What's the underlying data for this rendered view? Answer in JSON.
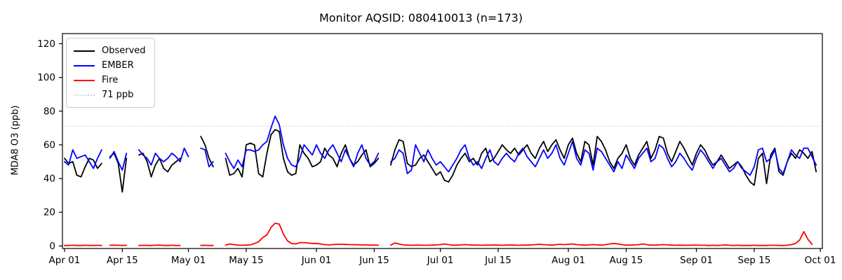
{
  "chart_data": {
    "type": "line",
    "title": "Monitor AQSID: 080410013 (n=173)",
    "xlabel": "",
    "ylabel": "MDA8 O3 (ppb)",
    "ylim": [
      0,
      120
    ],
    "grid": false,
    "legend_position": "upper-left",
    "y_ticks": [
      0,
      20,
      40,
      60,
      80,
      100,
      120
    ],
    "x_ticks": [
      {
        "label": "Apr 01",
        "day": 0
      },
      {
        "label": "Apr 15",
        "day": 14
      },
      {
        "label": "May 01",
        "day": 30
      },
      {
        "label": "May 15",
        "day": 44
      },
      {
        "label": "Jun 01",
        "day": 61
      },
      {
        "label": "Jun 15",
        "day": 75
      },
      {
        "label": "Jul 01",
        "day": 91
      },
      {
        "label": "Jul 15",
        "day": 105
      },
      {
        "label": "Aug 01",
        "day": 122
      },
      {
        "label": "Aug 15",
        "day": 136
      },
      {
        "label": "Sep 01",
        "day": 153
      },
      {
        "label": "Sep 15",
        "day": 167
      },
      {
        "label": "Oct 01",
        "day": 183
      }
    ],
    "threshold": {
      "label": "71 ppb",
      "value": 71,
      "color": "#d3d3d3",
      "style": "dotted"
    },
    "legend": [
      {
        "label": "Observed",
        "color": "#000000",
        "style": "solid"
      },
      {
        "label": "EMBER",
        "color": "#0000ff",
        "style": "solid"
      },
      {
        "label": "Fire",
        "color": "#ff0000",
        "style": "solid"
      },
      {
        "label": "71 ppb",
        "color": "#d3d3d3",
        "style": "dotted"
      }
    ],
    "x_start_label": "Apr 01",
    "x_end_label": "Oct 01",
    "n_points_label": 173,
    "series": [
      {
        "name": "Observed",
        "color": "#000000",
        "values": [
          52,
          49,
          50,
          42,
          41,
          47,
          52,
          51,
          46,
          49,
          null,
          53,
          55,
          49,
          32,
          52,
          null,
          null,
          54,
          55,
          50,
          41,
          48,
          52,
          46,
          44,
          48,
          50,
          52,
          null,
          null,
          null,
          null,
          65,
          60,
          52,
          47,
          null,
          null,
          52,
          42,
          43,
          46,
          41,
          60,
          61,
          60,
          43,
          41,
          55,
          66,
          69,
          68,
          52,
          44,
          42,
          43,
          60,
          55,
          52,
          47,
          48,
          50,
          58,
          54,
          52,
          47,
          55,
          60,
          52,
          48,
          50,
          54,
          57,
          47,
          49,
          52,
          null,
          null,
          48,
          57,
          63,
          62,
          49,
          47,
          48,
          52,
          54,
          50,
          46,
          42,
          44,
          39,
          38,
          42,
          48,
          52,
          55,
          50,
          52,
          48,
          55,
          58,
          50,
          52,
          56,
          60,
          57,
          55,
          58,
          54,
          57,
          60,
          55,
          52,
          58,
          62,
          56,
          60,
          63,
          57,
          52,
          60,
          64,
          55,
          50,
          62,
          60,
          48,
          65,
          62,
          57,
          50,
          46,
          52,
          55,
          60,
          52,
          48,
          54,
          58,
          62,
          52,
          57,
          65,
          64,
          55,
          50,
          56,
          62,
          58,
          53,
          48,
          55,
          60,
          57,
          52,
          48,
          50,
          54,
          50,
          46,
          48,
          50,
          47,
          42,
          38,
          36,
          52,
          55,
          37,
          54,
          58,
          44,
          42,
          50,
          55,
          52,
          57,
          55,
          52,
          56,
          44
        ]
      },
      {
        "name": "EMBER",
        "color": "#0000ff",
        "values": [
          50,
          48,
          57,
          52,
          53,
          54,
          50,
          46,
          52,
          57,
          null,
          52,
          56,
          50,
          45,
          55,
          null,
          null,
          57,
          54,
          52,
          48,
          55,
          52,
          50,
          52,
          55,
          53,
          50,
          58,
          53,
          null,
          null,
          58,
          57,
          47,
          50,
          null,
          null,
          55,
          50,
          46,
          51,
          47,
          57,
          57,
          56,
          57,
          60,
          62,
          70,
          77,
          72,
          60,
          52,
          48,
          47,
          52,
          60,
          57,
          54,
          60,
          55,
          52,
          57,
          60,
          55,
          50,
          57,
          52,
          47,
          55,
          60,
          52,
          48,
          50,
          55,
          null,
          null,
          50,
          52,
          57,
          55,
          43,
          45,
          60,
          55,
          50,
          57,
          52,
          48,
          50,
          47,
          44,
          48,
          52,
          57,
          60,
          52,
          48,
          50,
          46,
          52,
          57,
          50,
          48,
          52,
          55,
          52,
          50,
          55,
          58,
          53,
          50,
          47,
          52,
          57,
          52,
          55,
          60,
          52,
          48,
          55,
          62,
          52,
          48,
          57,
          55,
          45,
          58,
          56,
          52,
          48,
          44,
          50,
          46,
          54,
          50,
          46,
          52,
          55,
          58,
          50,
          52,
          60,
          58,
          52,
          47,
          50,
          55,
          52,
          48,
          45,
          52,
          57,
          54,
          50,
          46,
          50,
          52,
          48,
          44,
          46,
          50,
          46,
          44,
          42,
          47,
          57,
          58,
          50,
          52,
          57,
          46,
          43,
          50,
          57,
          54,
          52,
          58,
          58,
          53,
          48
        ]
      },
      {
        "name": "Fire",
        "color": "#ff0000",
        "values": [
          0.3,
          0.3,
          0.4,
          0.3,
          0.3,
          0.4,
          0.3,
          0.3,
          0.4,
          0.3,
          null,
          0.4,
          0.5,
          0.4,
          0.3,
          0.4,
          null,
          null,
          0.3,
          0.4,
          0.3,
          0.3,
          0.4,
          0.5,
          0.3,
          0.3,
          0.4,
          0.3,
          0.3,
          null,
          null,
          null,
          null,
          0.3,
          0.4,
          0.3,
          0.3,
          null,
          null,
          0.5,
          1.2,
          0.8,
          0.5,
          0.4,
          0.5,
          0.6,
          1.5,
          2.5,
          5,
          6.5,
          11,
          13.5,
          13,
          7,
          3,
          1.5,
          1.2,
          2,
          2,
          1.8,
          1.5,
          1.5,
          1.2,
          0.8,
          0.6,
          0.8,
          1,
          1,
          0.9,
          0.8,
          0.8,
          0.7,
          0.6,
          0.6,
          0.5,
          0.5,
          0.4,
          null,
          null,
          0.5,
          1.8,
          1.2,
          0.6,
          0.5,
          0.4,
          0.5,
          0.5,
          0.4,
          0.4,
          0.5,
          0.6,
          0.8,
          1.2,
          0.8,
          0.5,
          0.5,
          0.6,
          0.8,
          0.6,
          0.5,
          0.5,
          0.4,
          0.5,
          0.5,
          0.6,
          0.5,
          0.4,
          0.5,
          0.6,
          0.5,
          0.4,
          0.5,
          0.5,
          0.6,
          0.8,
          1,
          0.8,
          0.6,
          0.5,
          0.8,
          1,
          0.8,
          1,
          1.2,
          0.8,
          0.6,
          0.5,
          0.6,
          0.8,
          0.6,
          0.5,
          0.8,
          1.2,
          1.5,
          1.2,
          0.8,
          0.5,
          0.5,
          0.6,
          0.8,
          1.2,
          0.8,
          0.5,
          0.5,
          0.6,
          0.8,
          0.6,
          0.5,
          0.4,
          0.5,
          0.4,
          0.4,
          0.5,
          0.5,
          0.4,
          0.4,
          0.3,
          0.4,
          0.3,
          0.4,
          0.6,
          0.4,
          0.3,
          0.4,
          0.3,
          0.3,
          0.3,
          0.4,
          0.3,
          0.3,
          0.3,
          0.4,
          0.4,
          0.3,
          0.3,
          0.4,
          0.8,
          1.5,
          3.5,
          8.5,
          4,
          1,
          null
        ]
      }
    ]
  }
}
